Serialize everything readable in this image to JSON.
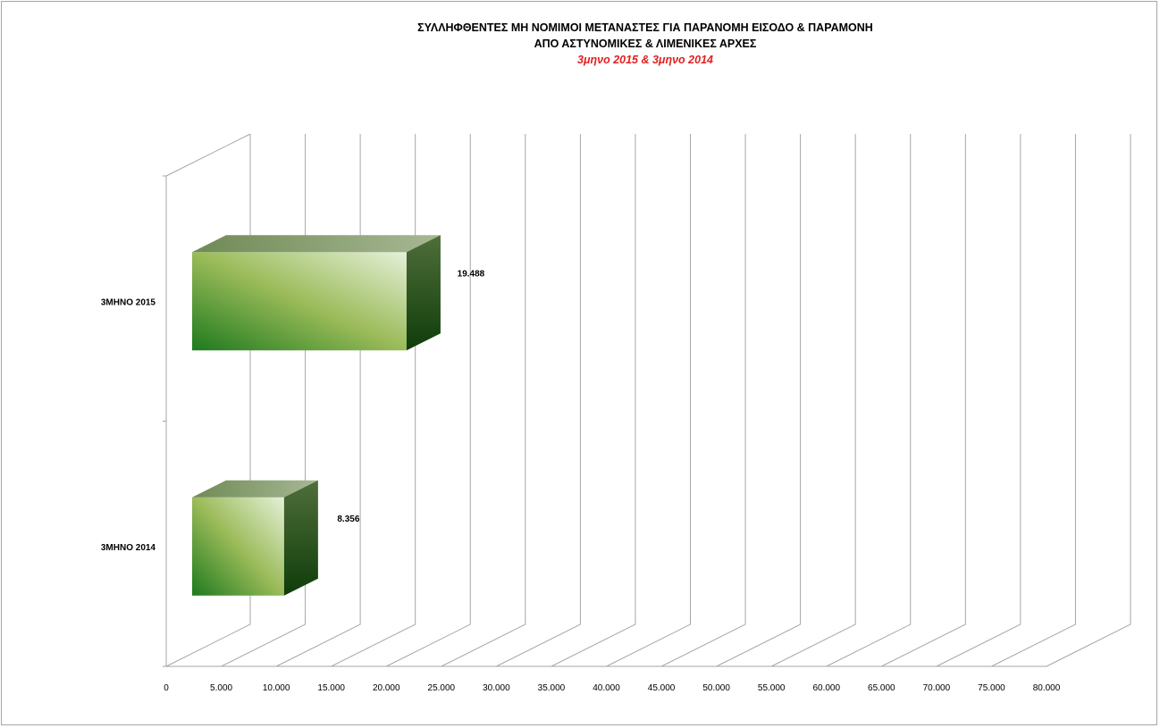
{
  "chart_data": {
    "type": "bar",
    "orientation": "horizontal",
    "style": "3d",
    "title": "ΣΥΛΛΗΦΘΕΝΤΕΣ  ΜΗ ΝΟΜΙΜΟΙ ΜΕΤΑΝΑΣΤΕΣ ΓΙΑ ΠΑΡΑΝΟΜΗ ΕΙΣΟΔΟ & ΠΑΡΑΜΟΝΗ",
    "title_line2": "ΑΠΟ ΑΣΤΥΝΟΜΙΚΕΣ & ΛΙΜΕΝΙΚΕΣ ΑΡΧΕΣ",
    "subtitle": "3μηνο 2015  &  3μηνο 2014",
    "categories": [
      "3ΜΗΝΟ 2015",
      "3ΜΗΝΟ 2014"
    ],
    "values": [
      19488,
      8356
    ],
    "data_labels": [
      "19.488",
      "8.356"
    ],
    "xlim": [
      0,
      80000
    ],
    "x_ticks": [
      "0",
      "5.000",
      "10.000",
      "15.000",
      "20.000",
      "25.000",
      "30.000",
      "35.000",
      "40.000",
      "45.000",
      "50.000",
      "55.000",
      "60.000",
      "65.000",
      "70.000",
      "75.000",
      "80.000"
    ],
    "grid": true,
    "legend": "none",
    "colors": {
      "bar_dark": "#1e7a1e",
      "bar_mid": "#9bbb59",
      "bar_light": "#e4f0d8",
      "bar_side": "#1f4f10",
      "bar_top": "#7a9460",
      "title": "#000000",
      "subtitle": "#e02020",
      "grid": "#a6a6a6"
    }
  }
}
